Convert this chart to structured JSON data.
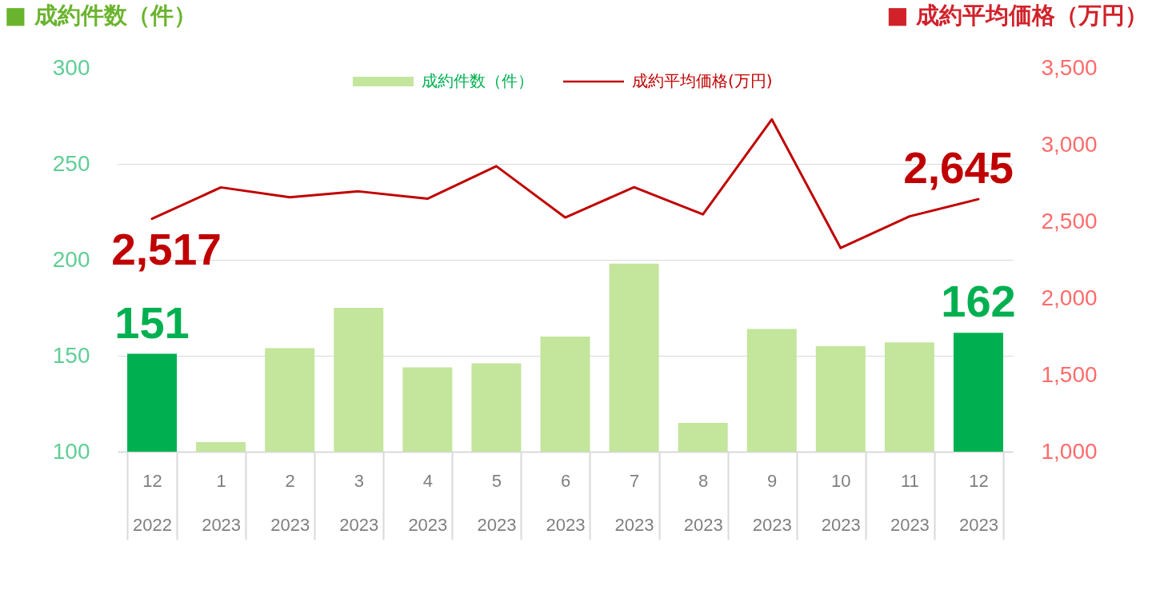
{
  "chart_data": {
    "type": "bar",
    "ylabel": "■ 成約件数（件）",
    "y2label": "■ 成約平均価格（万円）",
    "categories": [
      "12\n2022",
      "1\n2023",
      "2\n2023",
      "3\n2023",
      "4\n2023",
      "5\n2023",
      "6\n2023",
      "7\n2023",
      "8\n2023",
      "9\n2023",
      "10\n2023",
      "11\n2023",
      "12\n2023"
    ],
    "series": [
      {
        "name": "成約件数（件）",
        "color": "#c3e59c",
        "colors": [
          "#00b050",
          "#c3e59c",
          "#c3e59c",
          "#c3e59c",
          "#c3e59c",
          "#c3e59c",
          "#c3e59c",
          "#c3e59c",
          "#c3e59c",
          "#c3e59c",
          "#c3e59c",
          "#c3e59c",
          "#00b050"
        ],
        "values": [
          151,
          105,
          154,
          175,
          144,
          146,
          160,
          198,
          115,
          164,
          155,
          157,
          162
        ],
        "value_labels": [
          "151",
          null,
          null,
          null,
          null,
          null,
          null,
          null,
          null,
          null,
          null,
          null,
          "162"
        ]
      },
      {
        "name": "成約平均価格(万円)",
        "type": "line",
        "axis": "y2",
        "color": "#c00000",
        "values": [
          2517,
          2722,
          2658,
          2696,
          2648,
          2860,
          2526,
          2723,
          2546,
          3165,
          2327,
          2533,
          2645
        ],
        "value_labels": [
          "2,517",
          null,
          null,
          null,
          null,
          null,
          null,
          null,
          null,
          null,
          null,
          null,
          "2,645"
        ]
      }
    ],
    "ylim": [
      100,
      300
    ],
    "yticks": [
      100,
      150,
      200,
      250,
      300
    ],
    "y2lim": [
      1000,
      3500
    ],
    "y2ticks": [
      {
        "value": 1000,
        "label": "1,000"
      },
      {
        "value": 1500,
        "label": "1,500"
      },
      {
        "value": 2000,
        "label": "2,000"
      },
      {
        "value": 2500,
        "label": "2,500"
      },
      {
        "value": 3000,
        "label": "3,000"
      },
      {
        "value": 3500,
        "label": "3,500"
      }
    ],
    "grid": "y",
    "legend": "top"
  }
}
